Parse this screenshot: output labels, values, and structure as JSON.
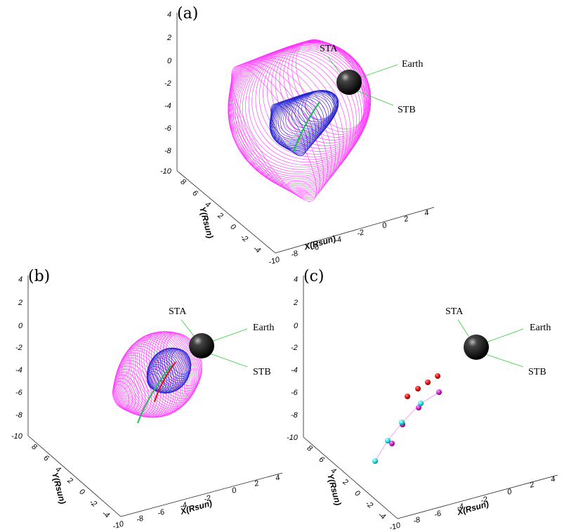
{
  "panels": [
    {
      "id": "a",
      "label": "(a)",
      "annotations": [
        "STA",
        "Earth",
        "STB"
      ],
      "z_ticks": [
        "4",
        "2",
        "0",
        "-2",
        "-4",
        "-6",
        "-8",
        "-10"
      ],
      "y_ticks": [
        "8",
        "6",
        "4",
        "2",
        "0",
        "-2",
        "-4"
      ],
      "x_ticks": [
        "-10",
        "-8",
        "-6",
        "-4",
        "-2",
        "0",
        "2",
        "4"
      ],
      "y_axis_title": "Y(Rsun)",
      "x_axis_title": "X(Rsun)"
    },
    {
      "id": "b",
      "label": "(b)",
      "annotations": [
        "STA",
        "Earth",
        "STB"
      ],
      "z_ticks": [
        "4",
        "2",
        "0",
        "-2",
        "-4",
        "-6",
        "-8",
        "-10"
      ],
      "y_ticks": [
        "8",
        "6",
        "4",
        "2",
        "0",
        "-2",
        "-4"
      ],
      "x_ticks": [
        "-10",
        "-8",
        "-6",
        "-4",
        "-2",
        "0",
        "2",
        "4"
      ],
      "y_axis_title": "Y(Rsun)",
      "x_axis_title": "X(Rsun)"
    },
    {
      "id": "c",
      "label": "(c)",
      "annotations": [
        "STA",
        "Earth",
        "STB"
      ],
      "z_ticks": [
        "4",
        "2",
        "0",
        "-2",
        "-4",
        "-6",
        "-8",
        "-10"
      ],
      "y_ticks": [
        "8",
        "6",
        "4",
        "2",
        "0",
        "-2",
        "-4"
      ],
      "x_ticks": [
        "-10",
        "-8",
        "-6",
        "-4",
        "-2",
        "0",
        "2",
        "4"
      ],
      "y_axis_title": "Y(Rsun)",
      "x_axis_title": "X(Rsun)"
    }
  ],
  "colors": {
    "outer_shell": "#ff33ff",
    "inner_shell": "#2222cc",
    "trajectory_green": "#22bb55",
    "trajectory_red": "#dd1111",
    "sun": "#000000",
    "point_red": "#dd1111",
    "point_magenta": "#cc22cc",
    "point_cyan": "#22dddd",
    "annotation_line": "#33cc33"
  }
}
